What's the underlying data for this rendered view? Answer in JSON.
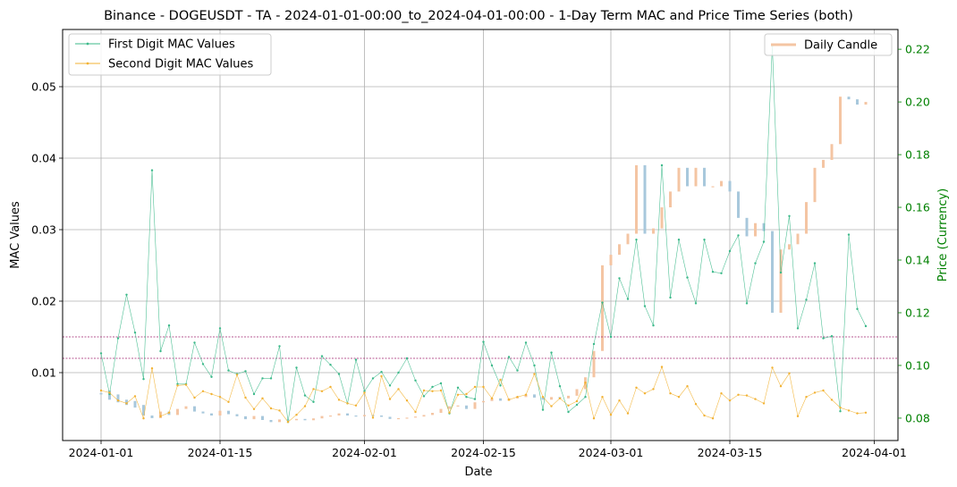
{
  "chart_data": {
    "type": "line",
    "title": "Binance - DOGEUSDT - TA - 2024-01-01-00:00_to_2024-04-01-00:00 - 1-Day Term MAC and Price Time Series (both)",
    "xlabel": "Date",
    "ylabel": "MAC Values",
    "ylabel_right": "Price (Currency)",
    "x_ticks": [
      "2024-01-01",
      "2024-01-15",
      "2024-02-01",
      "2024-02-15",
      "2024-03-01",
      "2024-03-15",
      "2024-04-01"
    ],
    "y_ticks": [
      0.01,
      0.02,
      0.03,
      0.04,
      0.05
    ],
    "y2_ticks": [
      0.08,
      0.1,
      0.12,
      0.14,
      0.16,
      0.18,
      0.2,
      0.22
    ],
    "ylim": [
      0.0005,
      0.058
    ],
    "y2lim": [
      0.0715,
      0.2275
    ],
    "grid": true,
    "legend_left": [
      "First Digit MAC Values",
      "Second Digit MAC Values"
    ],
    "legend_right": [
      "Daily Candle"
    ],
    "legend_left_position": "upper-left",
    "legend_right_position": "upper-right",
    "reference_lines": [
      0.015,
      0.012
    ],
    "series": [
      {
        "name": "First Digit MAC Values",
        "color": "#3cb98a",
        "values": [
          0.0127,
          0.007,
          0.0148,
          0.0209,
          0.0156,
          0.0091,
          0.0383,
          0.013,
          0.0166,
          0.0084,
          0.0084,
          0.0142,
          0.0112,
          0.0094,
          0.0162,
          0.0103,
          0.0098,
          0.0102,
          0.007,
          0.0092,
          0.0092,
          0.0137,
          0.0031,
          0.0107,
          0.0068,
          0.0059,
          0.0123,
          0.0111,
          0.0098,
          0.0057,
          0.0118,
          0.0074,
          0.0092,
          0.0101,
          0.0082,
          0.01,
          0.012,
          0.0089,
          0.0067,
          0.008,
          0.0085,
          0.0043,
          0.0079,
          0.0066,
          0.0063,
          0.0143,
          0.011,
          0.0082,
          0.0122,
          0.0103,
          0.0142,
          0.011,
          0.0048,
          0.0128,
          0.0081,
          0.0045,
          0.0055,
          0.0066,
          0.014,
          0.0198,
          0.015,
          0.0232,
          0.0203,
          0.0286,
          0.0193,
          0.0166,
          0.039,
          0.0205,
          0.0286,
          0.0233,
          0.0197,
          0.0286,
          0.0241,
          0.0239,
          0.027,
          0.0292,
          0.0197,
          0.0253,
          0.0283,
          0.0557,
          0.024,
          0.0319,
          0.0162,
          0.0202,
          0.0253,
          0.0148,
          0.0151,
          0.0046,
          0.0293,
          0.0189,
          0.0165
        ]
      },
      {
        "name": "Second Digit MAC Values",
        "color": "#f2b233",
        "values": [
          0.0075,
          0.0072,
          0.0061,
          0.0057,
          0.0067,
          0.0036,
          0.0106,
          0.0039,
          0.0044,
          0.0082,
          0.0083,
          0.0065,
          0.0074,
          0.007,
          0.0066,
          0.0059,
          0.0097,
          0.0065,
          0.0049,
          0.0064,
          0.005,
          0.0047,
          0.0031,
          0.0041,
          0.0053,
          0.0077,
          0.0074,
          0.008,
          0.0062,
          0.0057,
          0.0054,
          0.0072,
          0.0037,
          0.0095,
          0.0063,
          0.0077,
          0.0061,
          0.0045,
          0.0075,
          0.0074,
          0.0075,
          0.0044,
          0.0069,
          0.007,
          0.008,
          0.008,
          0.0064,
          0.009,
          0.0062,
          0.0066,
          0.0069,
          0.0098,
          0.0066,
          0.0053,
          0.0064,
          0.0054,
          0.006,
          0.0086,
          0.0036,
          0.0066,
          0.0041,
          0.0061,
          0.0043,
          0.0079,
          0.0071,
          0.0077,
          0.0108,
          0.0071,
          0.0066,
          0.0081,
          0.0056,
          0.004,
          0.0036,
          0.0071,
          0.0061,
          0.0069,
          0.0068,
          0.0063,
          0.0057,
          0.0107,
          0.0081,
          0.0099,
          0.0039,
          0.0066,
          0.0072,
          0.0075,
          0.0062,
          0.0051,
          0.0047,
          0.0043,
          0.0044
        ]
      }
    ],
    "candles": {
      "name": "Daily Candle",
      "up_color": "#f4c5a3",
      "down_color": "#a8c8dc",
      "open": [
        0.0895,
        0.0905,
        0.089,
        0.087,
        0.0865,
        0.085,
        0.081,
        0.08,
        0.0825,
        0.0812,
        0.0835,
        0.0845,
        0.0825,
        0.0818,
        0.081,
        0.0828,
        0.0815,
        0.0807,
        0.0796,
        0.0808,
        0.0793,
        0.0785,
        0.0795,
        0.0792,
        0.0797,
        0.0792,
        0.0799,
        0.0808,
        0.081,
        0.0818,
        0.081,
        0.0807,
        0.0812,
        0.081,
        0.0805,
        0.0797,
        0.08,
        0.0802,
        0.0806,
        0.0812,
        0.082,
        0.0835,
        0.0845,
        0.0848,
        0.0835,
        0.086,
        0.0865,
        0.0875,
        0.0866,
        0.0875,
        0.088,
        0.089,
        0.0878,
        0.087,
        0.088,
        0.0875,
        0.0885,
        0.091,
        0.0955,
        0.1055,
        0.138,
        0.142,
        0.146,
        0.15,
        0.176,
        0.15,
        0.152,
        0.16,
        0.166,
        0.175,
        0.168,
        0.175,
        0.168,
        0.168,
        0.17,
        0.166,
        0.156,
        0.149,
        0.154,
        0.151,
        0.12,
        0.144,
        0.146,
        0.15,
        0.162,
        0.175,
        0.178,
        0.184,
        0.202,
        0.201,
        0.199
      ],
      "close": [
        0.089,
        0.087,
        0.086,
        0.085,
        0.084,
        0.081,
        0.08,
        0.0825,
        0.0812,
        0.0835,
        0.0845,
        0.0825,
        0.0818,
        0.081,
        0.0828,
        0.0815,
        0.0807,
        0.0796,
        0.0808,
        0.0793,
        0.0785,
        0.0795,
        0.0792,
        0.0797,
        0.0792,
        0.0799,
        0.0808,
        0.081,
        0.0818,
        0.081,
        0.0807,
        0.0812,
        0.081,
        0.0805,
        0.0797,
        0.08,
        0.0802,
        0.0806,
        0.0812,
        0.082,
        0.0835,
        0.0845,
        0.0848,
        0.0835,
        0.086,
        0.0865,
        0.0875,
        0.0866,
        0.0875,
        0.088,
        0.089,
        0.0878,
        0.087,
        0.088,
        0.0875,
        0.0885,
        0.091,
        0.0955,
        0.1055,
        0.138,
        0.142,
        0.146,
        0.15,
        0.176,
        0.15,
        0.152,
        0.16,
        0.166,
        0.175,
        0.168,
        0.175,
        0.168,
        0.168,
        0.17,
        0.166,
        0.156,
        0.149,
        0.154,
        0.151,
        0.12,
        0.144,
        0.146,
        0.15,
        0.162,
        0.175,
        0.178,
        0.184,
        0.202,
        0.201,
        0.199,
        0.2
      ]
    }
  }
}
